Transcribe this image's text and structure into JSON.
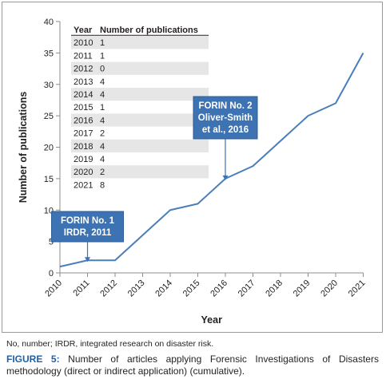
{
  "chart_data": {
    "type": "line",
    "xlabel": "Year",
    "ylabel": "Number of publications",
    "ylim": [
      0,
      40
    ],
    "yticks": [
      "0",
      "5",
      "10",
      "15",
      "20",
      "25",
      "30",
      "35",
      "40"
    ],
    "x": [
      "2010",
      "2011",
      "2012",
      "2013",
      "2014",
      "2015",
      "2016",
      "2017",
      "2018",
      "2019",
      "2020",
      "2021"
    ],
    "series": [
      {
        "values": [
          1,
          2,
          2,
          6,
          10,
          11,
          15,
          17,
          21,
          25,
          27,
          35
        ]
      }
    ],
    "line_color": "#4a7ebb",
    "grid": false,
    "annotations": [
      {
        "lines": [
          "FORIN No. 1",
          "IRDR, 2011"
        ],
        "x": "2011",
        "y": 2,
        "color": "#3d72b3"
      },
      {
        "lines": [
          "FORIN No. 2",
          "Oliver-Smith",
          "et al., 2016"
        ],
        "x": "2016",
        "y": 15,
        "color": "#3d72b3"
      }
    ],
    "table": {
      "headers": [
        "Year",
        "Number of publications"
      ],
      "rows": [
        [
          "2010",
          "1"
        ],
        [
          "2011",
          "1"
        ],
        [
          "2012",
          "0"
        ],
        [
          "2013",
          "4"
        ],
        [
          "2014",
          "4"
        ],
        [
          "2015",
          "1"
        ],
        [
          "2016",
          "4"
        ],
        [
          "2017",
          "2"
        ],
        [
          "2018",
          "4"
        ],
        [
          "2019",
          "4"
        ],
        [
          "2020",
          "2"
        ],
        [
          "2021",
          "8"
        ]
      ]
    }
  },
  "footnote": "No, number; IRDR, integrated research on disaster risk.",
  "caption": {
    "lead": "FIGURE 5:",
    "text": "Number of articles applying Forensic Investigations of Disasters methodology (direct or indirect application) (cumulative)."
  }
}
